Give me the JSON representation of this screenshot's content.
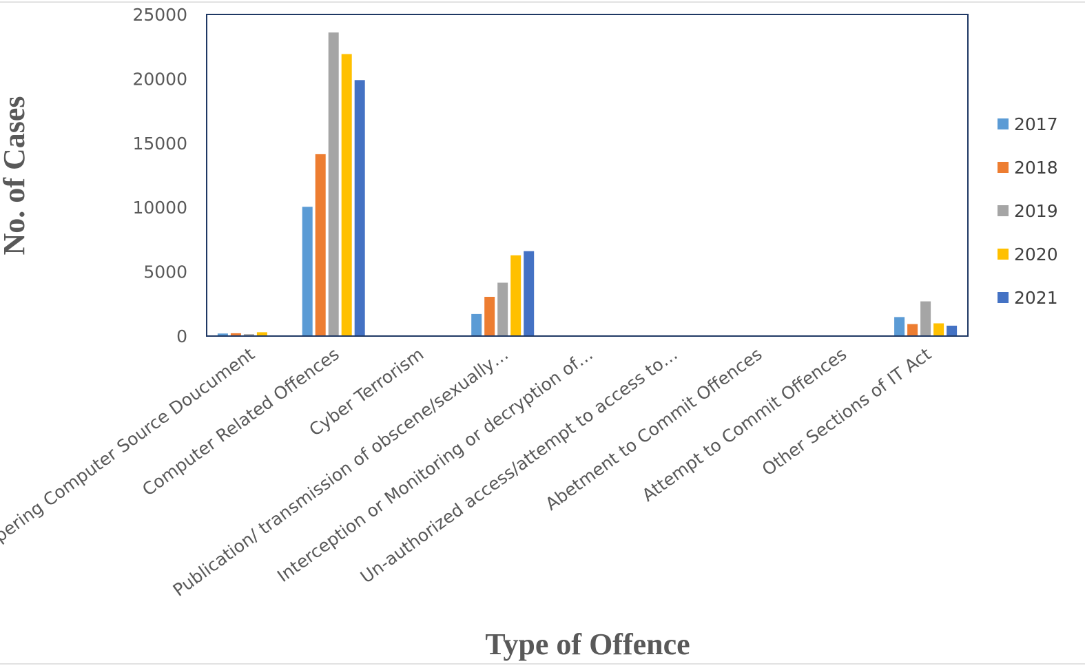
{
  "chart_data": {
    "type": "bar",
    "title": "",
    "xlabel": "Type of Offence",
    "ylabel": "No. of Cases",
    "ylim": [
      0,
      25000
    ],
    "yticks": [
      0,
      5000,
      10000,
      15000,
      20000,
      25000
    ],
    "grid": false,
    "legend_position": "right",
    "categories": [
      "ampering Computer Source Doucument",
      "Computer Related Offences",
      "Cyber Terrorism",
      "Publication/ transmission of obscene/sexually…",
      "Interception or Monitoring or decryption of…",
      "Un-authorized access/attempt to access to…",
      "Abetment to Commit Offences",
      "Attempt to Commit Offences",
      "Other Sections of IT Act"
    ],
    "series": [
      {
        "name": "2017",
        "color": "#5B9BD5",
        "values": [
          200,
          10050,
          20,
          1720,
          8,
          5,
          10,
          10,
          1480
        ]
      },
      {
        "name": "2018",
        "color": "#ED7D31",
        "values": [
          220,
          14140,
          20,
          3050,
          8,
          5,
          10,
          10,
          930
        ]
      },
      {
        "name": "2019",
        "color": "#A5A5A5",
        "values": [
          150,
          23600,
          10,
          4150,
          8,
          5,
          10,
          10,
          2700
        ]
      },
      {
        "name": "2020",
        "color": "#FFC000",
        "values": [
          300,
          21920,
          10,
          6280,
          8,
          5,
          10,
          10,
          990
        ]
      },
      {
        "name": "2021",
        "color": "#4472C4",
        "values": [
          30,
          19900,
          10,
          6600,
          8,
          5,
          10,
          10,
          810
        ]
      }
    ]
  }
}
